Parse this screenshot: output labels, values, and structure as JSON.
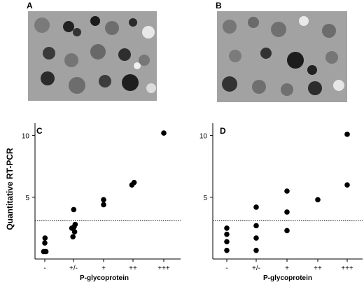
{
  "panels": {
    "a": "A",
    "b": "B",
    "c": "C",
    "d": "D"
  },
  "colors": {
    "tissue": "#9a9a9a",
    "cell_dark": "#1a1a1a",
    "point": "#000000",
    "threshold": "#000000"
  },
  "chart_data": [
    {
      "id": "C",
      "type": "scatter",
      "title": "",
      "xlabel": "P-glycoprotein",
      "ylabel": "Quantitative RT-PCR",
      "categories": [
        "-",
        "+/-",
        "+",
        "++",
        "+++"
      ],
      "ylim": [
        0,
        11
      ],
      "yticks": [
        5,
        10
      ],
      "threshold": 3.1,
      "points": [
        {
          "cat": "-",
          "x": -0.1,
          "y": 0.6
        },
        {
          "cat": "-",
          "x": 0.1,
          "y": 0.6
        },
        {
          "cat": "-",
          "x": 0.0,
          "y": 1.3
        },
        {
          "cat": "-",
          "x": 0.02,
          "y": 1.7
        },
        {
          "cat": "+/-",
          "x": -0.05,
          "y": 1.8
        },
        {
          "cat": "+/-",
          "x": 0.1,
          "y": 2.2
        },
        {
          "cat": "+/-",
          "x": -0.15,
          "y": 2.5
        },
        {
          "cat": "+/-",
          "x": 0.05,
          "y": 2.6
        },
        {
          "cat": "+/-",
          "x": 0.15,
          "y": 2.8
        },
        {
          "cat": "+/-",
          "x": 0.02,
          "y": 4.0
        },
        {
          "cat": "+",
          "x": 0.0,
          "y": 4.4
        },
        {
          "cat": "+",
          "x": 0.0,
          "y": 4.8
        },
        {
          "cat": "++",
          "x": -0.1,
          "y": 6.0
        },
        {
          "cat": "++",
          "x": 0.1,
          "y": 6.2
        },
        {
          "cat": "+++",
          "x": 0.0,
          "y": 10.2
        }
      ]
    },
    {
      "id": "D",
      "type": "scatter",
      "title": "",
      "xlabel": "P-glycoprotein",
      "ylabel": "",
      "categories": [
        "-",
        "+/-",
        "+",
        "++",
        "+++"
      ],
      "ylim": [
        0,
        11
      ],
      "yticks": [
        5,
        10
      ],
      "threshold": 3.1,
      "points": [
        {
          "cat": "-",
          "x": 0.0,
          "y": 0.7
        },
        {
          "cat": "-",
          "x": 0.0,
          "y": 1.4
        },
        {
          "cat": "-",
          "x": 0.0,
          "y": 2.0
        },
        {
          "cat": "-",
          "x": 0.0,
          "y": 2.5
        },
        {
          "cat": "+/-",
          "x": 0.0,
          "y": 0.7
        },
        {
          "cat": "+/-",
          "x": 0.0,
          "y": 1.7
        },
        {
          "cat": "+/-",
          "x": 0.0,
          "y": 2.7
        },
        {
          "cat": "+/-",
          "x": 0.0,
          "y": 4.2
        },
        {
          "cat": "+",
          "x": 0.0,
          "y": 2.3
        },
        {
          "cat": "+",
          "x": 0.0,
          "y": 3.8
        },
        {
          "cat": "+",
          "x": 0.0,
          "y": 5.5
        },
        {
          "cat": "++",
          "x": 0.0,
          "y": 4.8
        },
        {
          "cat": "+++",
          "x": 0.0,
          "y": 6.0
        },
        {
          "cat": "+++",
          "x": 0.0,
          "y": 10.1
        }
      ]
    }
  ]
}
